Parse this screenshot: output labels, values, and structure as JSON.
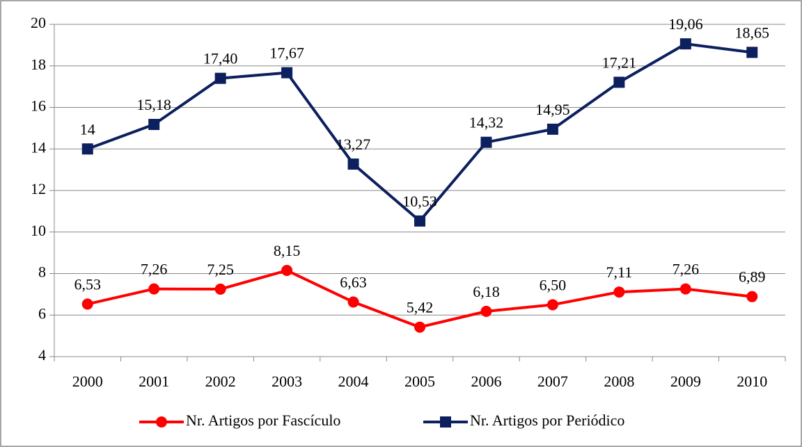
{
  "chart_data": {
    "type": "line",
    "categories": [
      "2000",
      "2001",
      "2002",
      "2003",
      "2004",
      "2005",
      "2006",
      "2007",
      "2008",
      "2009",
      "2010"
    ],
    "series": [
      {
        "name": "Nr. Artigos por Fascículo",
        "color": "#ff0000",
        "marker": "circle",
        "values": [
          6.53,
          7.26,
          7.25,
          8.15,
          6.63,
          5.42,
          6.18,
          6.5,
          7.11,
          7.26,
          6.89
        ],
        "value_labels": [
          "6,53",
          "7,26",
          "7,25",
          "8,15",
          "6,63",
          "5,42",
          "6,18",
          "6,50",
          "7,11",
          "7,26",
          "6,89"
        ]
      },
      {
        "name": "Nr. Artigos por Periódico",
        "color": "#0c1f5e",
        "marker": "square",
        "values": [
          14,
          15.18,
          17.4,
          17.67,
          13.27,
          10.53,
          14.32,
          14.95,
          17.21,
          19.06,
          18.65
        ],
        "value_labels": [
          "14",
          "15,18",
          "17,40",
          "17,67",
          "13,27",
          "10,53",
          "14,32",
          "14,95",
          "17,21",
          "19,06",
          "18,65"
        ]
      }
    ],
    "ylim": [
      4,
      20
    ],
    "yticks": [
      4,
      6,
      8,
      10,
      12,
      14,
      16,
      18,
      20
    ],
    "grid": true,
    "legend": "bottom"
  }
}
